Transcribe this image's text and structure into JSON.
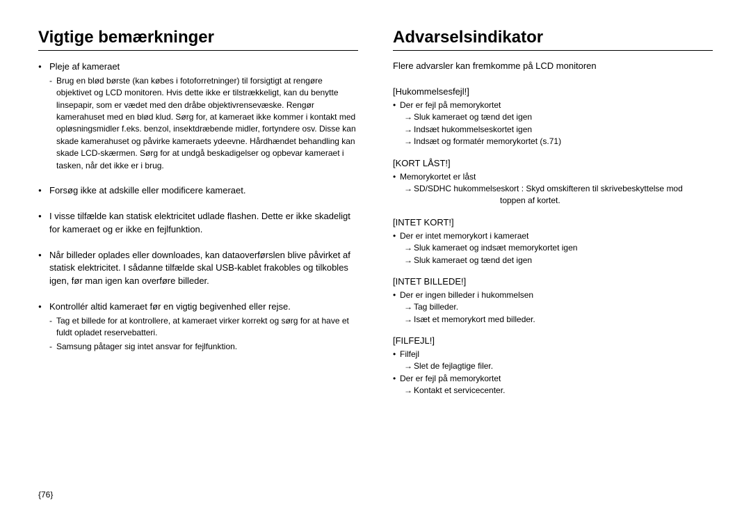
{
  "left": {
    "heading": "Vigtige bemærkninger",
    "item1": {
      "title": "Pleje af kameraet",
      "sub1": "Brug en blød børste (kan købes i fotoforretninger) til forsigtigt at rengøre objektivet og LCD monitoren. Hvis dette ikke er tilstrækkeligt, kan du benytte linsepapir, som er vædet med den dråbe objektivrensevæske. Rengør kamerahuset med en blød klud. Sørg for, at kameraet ikke kommer i kontakt med opløsningsmidler f.eks. benzol, insektdræbende midler, fortyndere osv. Disse kan skade kamerahuset og påvirke kameraets ydeevne. Hårdhændet behandling kan skade LCD-skærmen. Sørg for at undgå beskadigelser og opbevar kameraet i tasken, når det ikke er i brug."
    },
    "item2": "Forsøg ikke at adskille eller modificere kameraet.",
    "item3": "I visse tilfælde kan statisk elektricitet udlade flashen. Dette er ikke skadeligt for kameraet og er ikke en fejlfunktion.",
    "item4": "Når billeder oplades eller downloades, kan dataoverførslen blive påvirket af statisk elektricitet. I sådanne tilfælde skal USB-kablet frakobles og tilkobles igen, før man igen kan overføre billeder.",
    "item5": {
      "title": "Kontrollér altid kameraet før en vigtig begivenhed eller rejse.",
      "sub1": "Tag et billede for at kontrollere, at kameraet virker korrekt og sørg for at have et fuldt opladet reservebatteri.",
      "sub2": "Samsung påtager sig intet ansvar for fejlfunktion."
    }
  },
  "right": {
    "heading": "Advarselsindikator",
    "intro": "Flere advarsler kan fremkomme på LCD monitoren",
    "w1": {
      "title": "[Hukommelsesfejl!]",
      "b1": "Der er fejl på memorykortet",
      "a1": "Sluk kameraet og tænd det igen",
      "a2": "Indsæt hukommelseskortet igen",
      "a3": "Indsæt og formatér memorykortet (s.71)"
    },
    "w2": {
      "title": "[KORT LÅST!]",
      "b1": "Memorykortet er låst",
      "a1": "SD/SDHC hukommelseskort : Skyd omskifteren til skrivebeskyttelse mod",
      "a1c": "toppen af kortet."
    },
    "w3": {
      "title": "[INTET KORT!]",
      "b1": "Der er intet memorykort i kameraet",
      "a1": "Sluk kameraet og indsæt memorykortet igen",
      "a2": "Sluk kameraet og tænd det igen"
    },
    "w4": {
      "title": "[INTET BILLEDE!]",
      "b1": "Der er ingen billeder i hukommelsen",
      "a1": "Tag billeder.",
      "a2": "Isæt et memorykort med billeder."
    },
    "w5": {
      "title": "[FILFEJL!]",
      "b1": "Filfejl",
      "a1": "Slet de fejlagtige filer.",
      "b2": "Der er fejl på memorykortet",
      "a2": "Kontakt et servicecenter."
    }
  },
  "pageNumber": "{76}"
}
